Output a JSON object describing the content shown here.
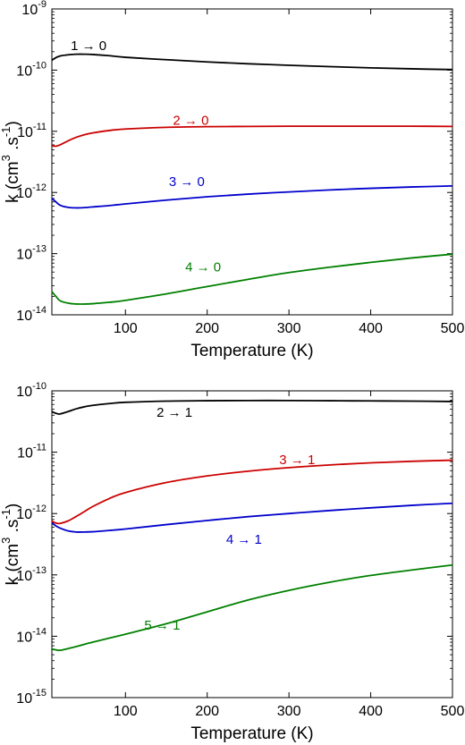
{
  "chart_data": [
    {
      "type": "line",
      "panel": "top",
      "xlabel": "Temperature (K)",
      "ylabel_main": "k (cm",
      "ylabel_sup1": "3",
      "ylabel_mid": " .s",
      "ylabel_sup2": "-1",
      "ylabel_end": ")",
      "xlim": [
        10,
        500
      ],
      "ylim_log10": [
        -14,
        -9
      ],
      "yscale": "log",
      "grid": false,
      "x_ticks": [
        100,
        200,
        300,
        400,
        500
      ],
      "y_ticks": [
        {
          "exp": -14,
          "base": "10",
          "sup": "-14"
        },
        {
          "exp": -13,
          "base": "10",
          "sup": "-13"
        },
        {
          "exp": -12,
          "base": "10",
          "sup": "-12"
        },
        {
          "exp": -11,
          "base": "10",
          "sup": "-11"
        },
        {
          "exp": -10,
          "base": "10",
          "sup": "-10"
        },
        {
          "exp": -9,
          "base": "10",
          "sup": "-9"
        }
      ],
      "series": [
        {
          "name": "1 → 0",
          "color": "#000000",
          "label_at": [
            55,
            -9.6
          ],
          "x": [
            10,
            15,
            20,
            30,
            40,
            50,
            60,
            80,
            100,
            150,
            200,
            250,
            300,
            350,
            400,
            450,
            500
          ],
          "y": [
            1.45e-10,
            1.6e-10,
            1.7e-10,
            1.78e-10,
            1.82e-10,
            1.82e-10,
            1.8e-10,
            1.72e-10,
            1.62e-10,
            1.48e-10,
            1.36e-10,
            1.27e-10,
            1.2e-10,
            1.14e-10,
            1.09e-10,
            1.05e-10,
            1.02e-10
          ]
        },
        {
          "name": "2 → 0",
          "color": "#cc0000",
          "label_at": [
            180,
            -10.82
          ],
          "x": [
            10,
            15,
            20,
            30,
            40,
            50,
            60,
            80,
            100,
            150,
            200,
            250,
            300,
            350,
            400,
            450,
            500
          ],
          "y": [
            5.8e-12,
            5.7e-12,
            6e-12,
            7e-12,
            8e-12,
            8.8e-12,
            9.4e-12,
            1.03e-11,
            1.09e-11,
            1.16e-11,
            1.19e-11,
            1.2e-11,
            1.21e-11,
            1.21e-11,
            1.21e-11,
            1.21e-11,
            1.2e-11
          ]
        },
        {
          "name": "3 → 0",
          "color": "#0000cc",
          "label_at": [
            175,
            -11.82
          ],
          "x": [
            10,
            15,
            20,
            30,
            40,
            50,
            60,
            80,
            100,
            150,
            200,
            250,
            300,
            350,
            400,
            450,
            500
          ],
          "y": [
            8e-13,
            7e-13,
            6.2e-13,
            5.7e-13,
            5.6e-13,
            5.65e-13,
            5.8e-13,
            6.1e-13,
            6.5e-13,
            7.5e-13,
            8.5e-13,
            9.4e-13,
            1.02e-12,
            1.1e-12,
            1.17e-12,
            1.23e-12,
            1.28e-12
          ]
        },
        {
          "name": "4 → 0",
          "color": "#008000",
          "label_at": [
            195,
            -13.22
          ],
          "x": [
            10,
            15,
            20,
            30,
            40,
            50,
            60,
            80,
            100,
            150,
            200,
            250,
            300,
            350,
            400,
            450,
            500
          ],
          "y": [
            2.4e-14,
            2e-14,
            1.7e-14,
            1.55e-14,
            1.5e-14,
            1.5e-14,
            1.52e-14,
            1.6e-14,
            1.72e-14,
            2.2e-14,
            2.9e-14,
            3.8e-14,
            4.9e-14,
            6e-14,
            7.2e-14,
            8.5e-14,
            9.8e-14
          ]
        }
      ]
    },
    {
      "type": "line",
      "panel": "bottom",
      "xlabel": "Temperature (K)",
      "ylabel_main": "k (cm",
      "ylabel_sup1": "3",
      "ylabel_mid": " .s",
      "ylabel_sup2": "-1",
      "ylabel_end": ")",
      "xlim": [
        10,
        500
      ],
      "ylim_log10": [
        -15,
        -10
      ],
      "yscale": "log",
      "grid": false,
      "x_ticks": [
        100,
        200,
        300,
        400,
        500
      ],
      "y_ticks": [
        {
          "exp": -15,
          "base": "10",
          "sup": "-15"
        },
        {
          "exp": -14,
          "base": "10",
          "sup": "-14"
        },
        {
          "exp": -13,
          "base": "10",
          "sup": "-13"
        },
        {
          "exp": -12,
          "base": "10",
          "sup": "-12"
        },
        {
          "exp": -11,
          "base": "10",
          "sup": "-11"
        },
        {
          "exp": -10,
          "base": "10",
          "sup": "-10"
        }
      ],
      "series": [
        {
          "name": "2 → 1",
          "color": "#000000",
          "label_at": [
            160,
            -10.35
          ],
          "x": [
            10,
            15,
            20,
            30,
            40,
            50,
            60,
            80,
            100,
            150,
            200,
            250,
            300,
            350,
            400,
            450,
            500
          ],
          "y": [
            4.6e-11,
            4.3e-11,
            4.2e-11,
            4.6e-11,
            5.1e-11,
            5.5e-11,
            5.8e-11,
            6.2e-11,
            6.5e-11,
            6.8e-11,
            6.9e-11,
            6.95e-11,
            6.95e-11,
            6.9e-11,
            6.85e-11,
            6.8e-11,
            6.7e-11
          ]
        },
        {
          "name": "3 → 1",
          "color": "#cc0000",
          "label_at": [
            310,
            -11.12
          ],
          "x": [
            10,
            15,
            20,
            30,
            40,
            50,
            60,
            80,
            100,
            150,
            200,
            250,
            300,
            350,
            400,
            450,
            500
          ],
          "y": [
            7.5e-13,
            7e-13,
            6.9e-13,
            7.6e-13,
            9e-13,
            1.08e-12,
            1.3e-12,
            1.75e-12,
            2.2e-12,
            3.2e-12,
            4.1e-12,
            4.9e-12,
            5.6e-12,
            6.2e-12,
            6.7e-12,
            7.1e-12,
            7.4e-12
          ]
        },
        {
          "name": "4 → 1",
          "color": "#0000cc",
          "label_at": [
            245,
            -12.42
          ],
          "x": [
            10,
            15,
            20,
            30,
            40,
            50,
            60,
            80,
            100,
            150,
            200,
            250,
            300,
            350,
            400,
            450,
            500
          ],
          "y": [
            7e-13,
            6.3e-13,
            5.8e-13,
            5.2e-13,
            5e-13,
            5e-13,
            5.05e-13,
            5.3e-13,
            5.6e-13,
            6.6e-13,
            7.7e-13,
            8.9e-13,
            1e-12,
            1.12e-12,
            1.24e-12,
            1.36e-12,
            1.47e-12
          ]
        },
        {
          "name": "5 → 1",
          "color": "#008000",
          "label_at": [
            145,
            -13.82
          ],
          "x": [
            10,
            15,
            20,
            30,
            40,
            50,
            60,
            80,
            100,
            150,
            200,
            250,
            300,
            350,
            400,
            450,
            500
          ],
          "y": [
            6.2e-15,
            6e-15,
            5.9e-15,
            6.3e-15,
            6.8e-15,
            7.4e-15,
            8e-15,
            9.3e-15,
            1.08e-14,
            1.6e-14,
            2.5e-14,
            3.9e-14,
            5.6e-14,
            7.6e-14,
            9.8e-14,
            1.2e-13,
            1.45e-13
          ]
        }
      ]
    }
  ]
}
